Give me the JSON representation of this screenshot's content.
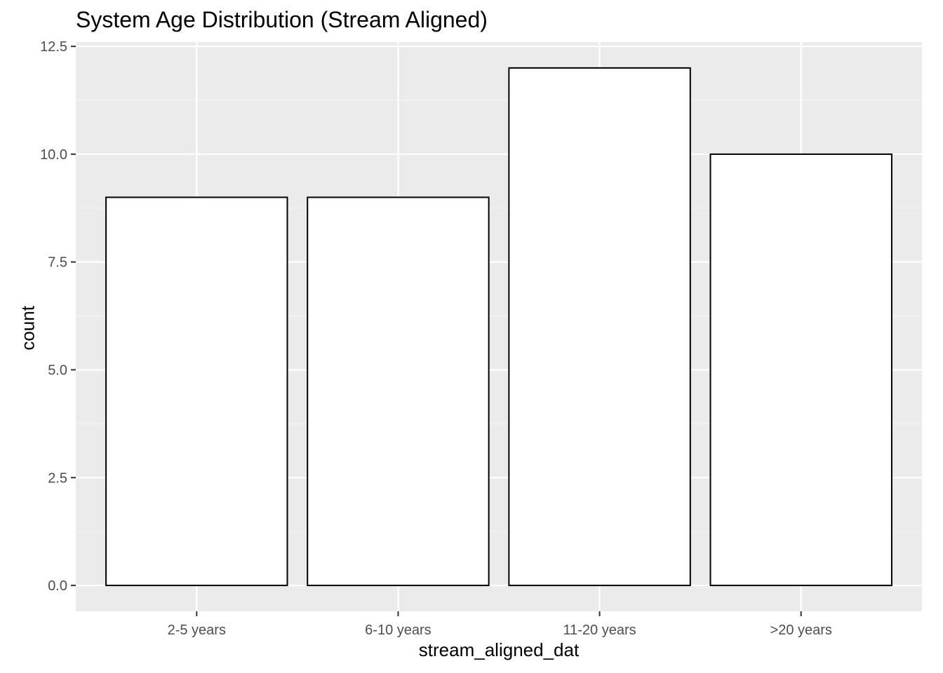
{
  "chart_data": {
    "type": "bar",
    "title": "System Age Distribution (Stream Aligned)",
    "xlabel": "stream_aligned_dat",
    "ylabel": "count",
    "categories": [
      "2-5 years",
      "6-10 years",
      "11-20 years",
      ">20 years"
    ],
    "values": [
      9,
      9,
      12,
      10
    ],
    "ylim": [
      -0.6,
      12.6
    ],
    "yticks": [
      0,
      2.5,
      5,
      7.5,
      10,
      12.5
    ],
    "ytick_labels": [
      "0.0",
      "2.5",
      "5.0",
      "7.5",
      "10.0",
      "12.5"
    ],
    "grid": true,
    "legend": "none",
    "colors": {
      "panel_background": "#EBEBEB",
      "grid_major": "#FFFFFF",
      "grid_minor": "#F5F5F5",
      "bar_fill": "#FFFFFF",
      "bar_stroke": "#000000",
      "tick_label": "#4D4D4D",
      "tick_mark": "#333333"
    }
  }
}
